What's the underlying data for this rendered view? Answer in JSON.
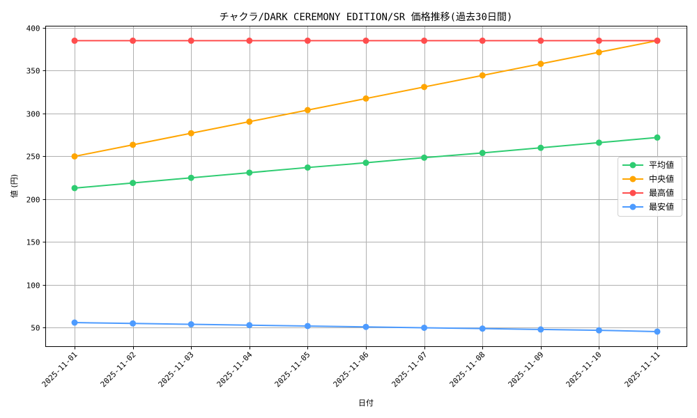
{
  "chart_data": {
    "type": "line",
    "title": "チャクラ/DARK CEREMONY EDITION/SR 価格推移(過去30日間)",
    "xlabel": "日付",
    "ylabel": "値 (円)",
    "x": [
      "2025-11-01",
      "2025-11-02",
      "2025-11-03",
      "2025-11-04",
      "2025-11-05",
      "2025-11-06",
      "2025-11-07",
      "2025-11-08",
      "2025-11-09",
      "2025-11-10",
      "2025-11-11"
    ],
    "ylim": [
      28,
      402
    ],
    "yticks": [
      50,
      100,
      150,
      200,
      250,
      300,
      350,
      400
    ],
    "grid": true,
    "legend_position": "center right",
    "series": [
      {
        "name": "平均値",
        "color": "#2ecc71",
        "values": [
          213,
          219,
          225,
          231,
          237,
          242.5,
          248.5,
          254,
          260,
          266,
          272
        ]
      },
      {
        "name": "中央値",
        "color": "#ffa500",
        "values": [
          250,
          263.5,
          277,
          290.5,
          304,
          317.5,
          331,
          344.5,
          358,
          371.5,
          385
        ]
      },
      {
        "name": "最高値",
        "color": "#ff4d4d",
        "values": [
          385,
          385,
          385,
          385,
          385,
          385,
          385,
          385,
          385,
          385,
          385
        ]
      },
      {
        "name": "最安値",
        "color": "#4d9bff",
        "values": [
          56,
          55,
          54,
          53,
          52,
          51,
          50,
          49,
          48,
          47,
          45.5
        ]
      }
    ]
  }
}
